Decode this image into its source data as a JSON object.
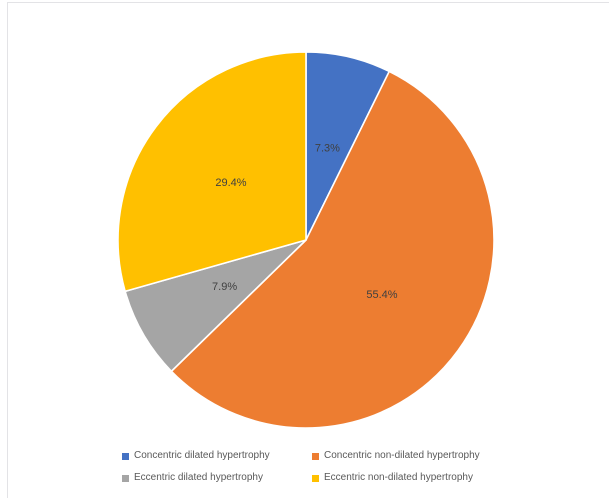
{
  "figure": {
    "background": "#ffffff",
    "frame_border_color": "#e3e3e6"
  },
  "chart_data": {
    "type": "pie",
    "title": "",
    "categories": [
      "Concentric dilated hypertrophy",
      "Concentric non-dilated hypertrophy",
      "Eccentric dilated hypertrophy",
      "Eccentric non-dilated hypertrophy"
    ],
    "values": [
      7.3,
      55.4,
      7.9,
      29.4
    ],
    "data_labels": [
      "7.3%",
      "55.4%",
      "7.9%",
      "29.4%"
    ],
    "colors": [
      "#4472C4",
      "#ED7D31",
      "#A5A5A5",
      "#FFC000"
    ],
    "start_angle_deg": 0,
    "direction": "clockwise",
    "label_radius_ratio": 0.5,
    "label_color": "#404040",
    "slice_border_color": "#ffffff",
    "legend_position": "bottom",
    "legend_text_color": "#595959",
    "grid": false
  },
  "legend": {
    "items": [
      {
        "label": "Concentric dilated hypertrophy",
        "color": "#4472C4"
      },
      {
        "label": "Concentric non-dilated hypertrophy",
        "color": "#ED7D31"
      },
      {
        "label": "Eccentric dilated hypertrophy",
        "color": "#A5A5A5"
      },
      {
        "label": "Eccentric non-dilated hypertrophy",
        "color": "#FFC000"
      }
    ]
  }
}
